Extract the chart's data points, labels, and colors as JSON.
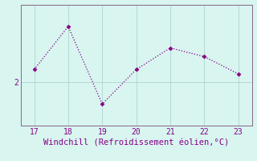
{
  "x": [
    17,
    18,
    19,
    20,
    21,
    22,
    23
  ],
  "y": [
    2.3,
    3.3,
    1.5,
    2.3,
    2.8,
    2.6,
    2.2
  ],
  "line_color": "#880088",
  "marker_color": "#880088",
  "background_color": "#d8f5f0",
  "grid_color": "#b0d4d0",
  "spine_color": "#886688",
  "xlabel": "Windchill (Refroidissement éolien,°C)",
  "xlabel_color": "#880088",
  "tick_color": "#880088",
  "xlim": [
    16.6,
    23.4
  ],
  "ylim": [
    1.0,
    3.8
  ],
  "yticks": [
    2
  ],
  "xticks": [
    17,
    18,
    19,
    20,
    21,
    22,
    23
  ],
  "xlabel_fontsize": 7.5,
  "tick_fontsize": 7,
  "linewidth": 0.9,
  "markersize": 2.5
}
